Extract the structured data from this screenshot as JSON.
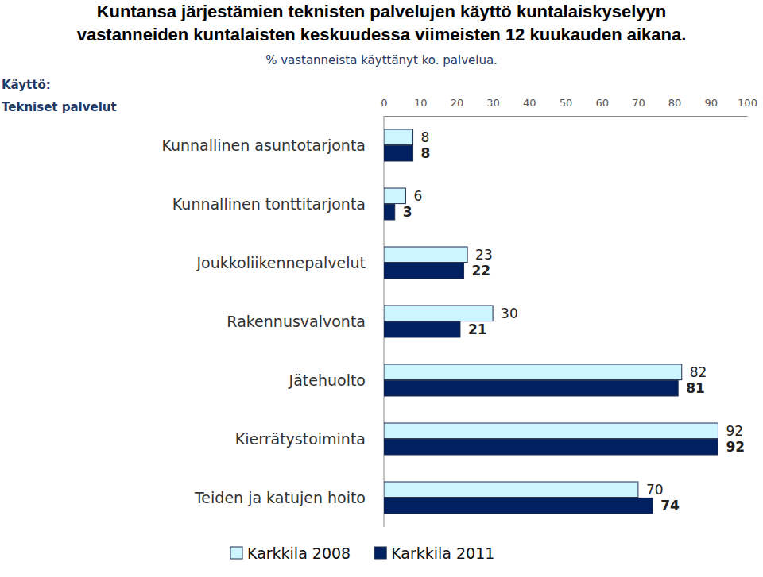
{
  "chart_data": {
    "type": "bar",
    "orientation": "horizontal",
    "title": "Kuntansa järjestämien teknisten palvelujen käyttö kuntalaiskyselyyn\nvastanneiden kuntalaisten keskuudessa viimeisten 12 kuukauden aikana.",
    "subtitle": "% vastanneista käyttänyt ko. palvelua.",
    "annotations": [
      "Käyttö:",
      "Tekniset palvelut"
    ],
    "categories": [
      "Kunnallinen asuntotarjonta",
      "Kunnallinen tonttitarjonta",
      "Joukkoliikennepalvelut",
      "Rakennusvalvonta",
      "Jätehuolto",
      "Kierrätystoiminta",
      "Teiden ja katujen hoito"
    ],
    "series": [
      {
        "name": "Karkkila 2008",
        "color": "#ccf5ff",
        "values": [
          8,
          6,
          23,
          30,
          82,
          92,
          70
        ]
      },
      {
        "name": "Karkkila 2011",
        "color": "#002060",
        "values": [
          8,
          3,
          22,
          21,
          81,
          92,
          74
        ]
      }
    ],
    "xlim": [
      0,
      100
    ],
    "xticks": [
      0,
      10,
      20,
      30,
      40,
      50,
      60,
      70,
      80,
      90,
      100
    ],
    "grid": false,
    "legend": "bottom",
    "data_labels": true
  }
}
